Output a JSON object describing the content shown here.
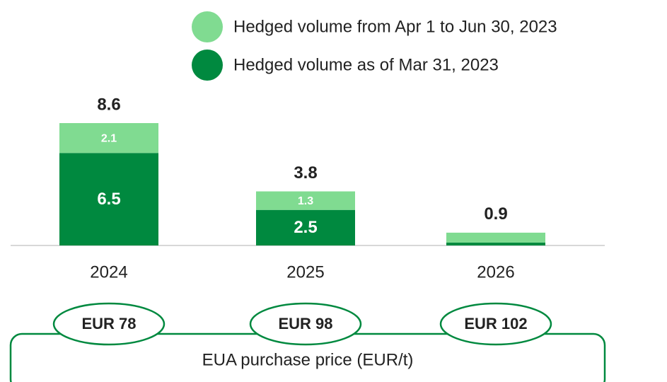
{
  "chart_data": {
    "type": "stacked_bar",
    "categories": [
      "2024",
      "2025",
      "2026"
    ],
    "series": [
      {
        "name": "Hedged volume as of Mar 31, 2023",
        "color": "#00893f",
        "values": [
          6.5,
          2.5,
          0.2
        ]
      },
      {
        "name": "Hedged volume from Apr 1 to Jun 30, 2023",
        "color": "#80db91",
        "values": [
          2.1,
          1.3,
          0.7
        ]
      }
    ],
    "totals": [
      8.6,
      3.8,
      0.9
    ],
    "price_labels": [
      "EUR 78",
      "EUR 98",
      "EUR 102"
    ],
    "price_caption": "EUA purchase price (EUR/t)"
  }
}
